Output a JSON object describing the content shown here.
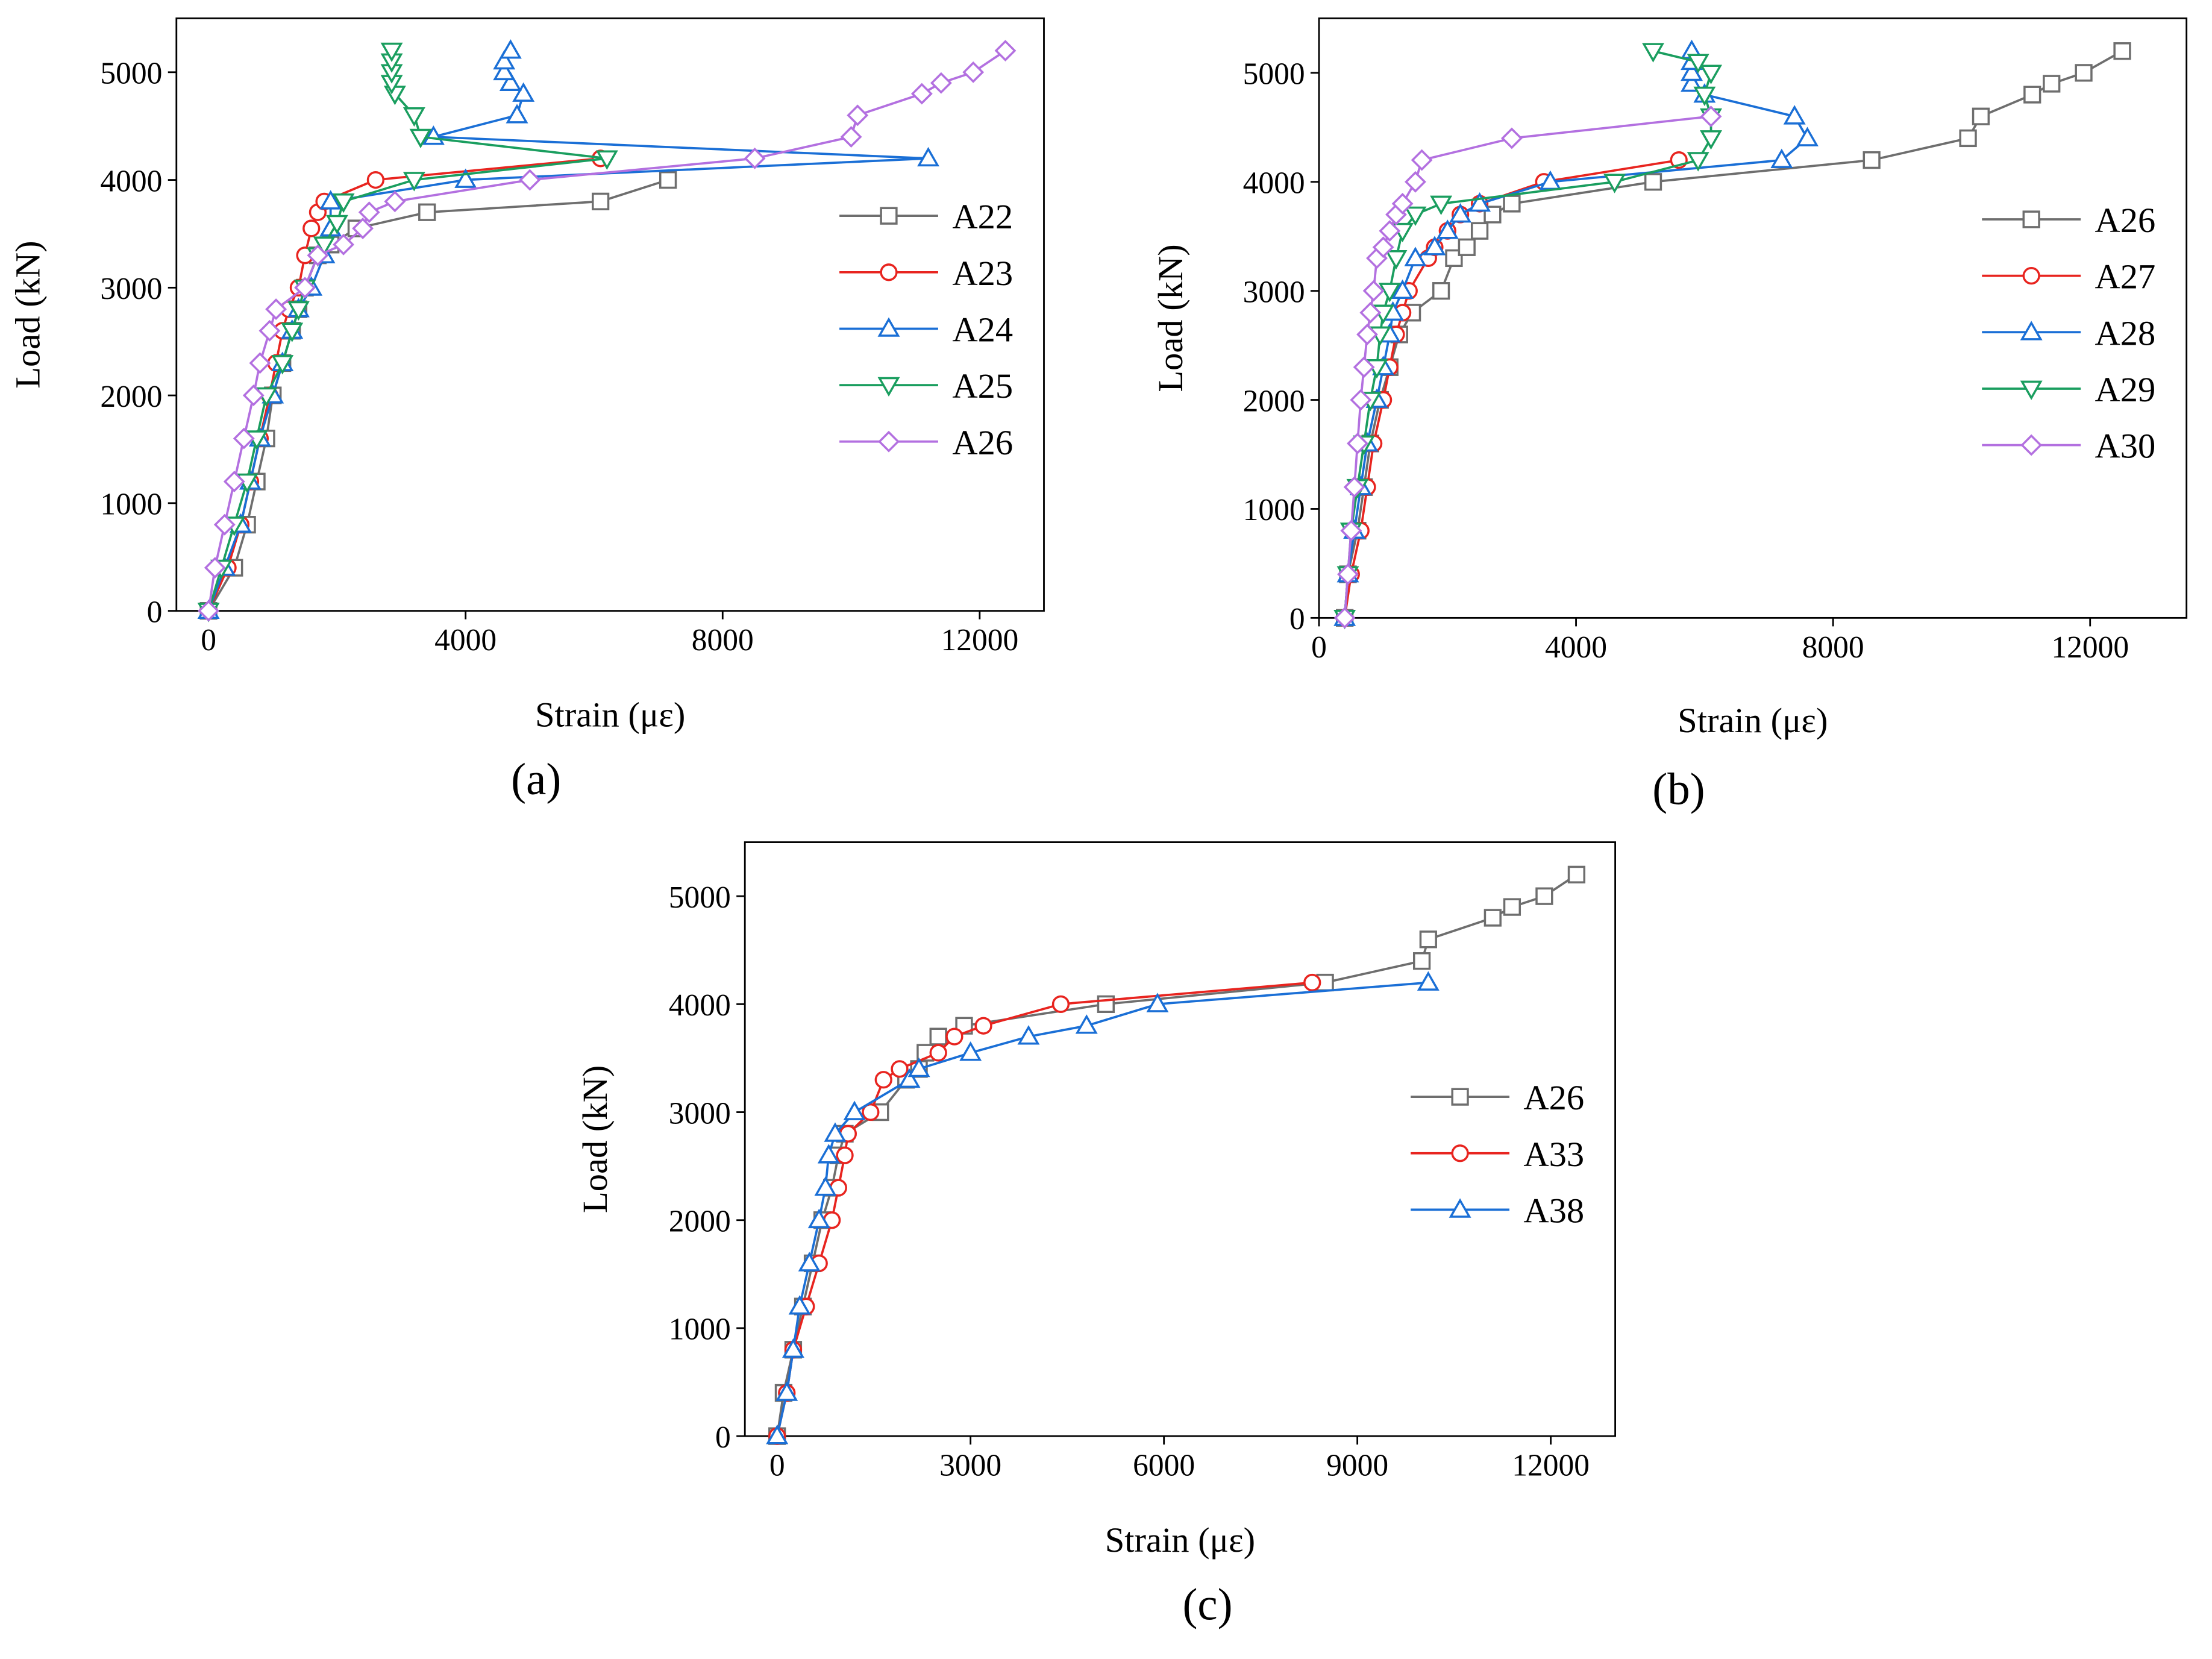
{
  "chart_data": [
    {
      "type": "line",
      "panel_label": "(a)",
      "x_label": "Strain (με)",
      "y_label": "Load (kN)",
      "xlim": [
        -500,
        13000
      ],
      "xticks": [
        0,
        4000,
        8000,
        12000
      ],
      "ylim": [
        0,
        5500
      ],
      "yticks": [
        0,
        1000,
        2000,
        3000,
        4000,
        5000
      ],
      "legend": "right",
      "series": [
        {
          "name": "A22",
          "color": "#6e6e6e",
          "marker": "square",
          "x": [
            0,
            400,
            600,
            750,
            900,
            1000,
            1150,
            1300,
            1400,
            1500,
            1700,
            1900,
            2300,
            3400,
            6100,
            7150
          ],
          "values": [
            0,
            400,
            800,
            1200,
            1600,
            2000,
            2300,
            2600,
            2800,
            3000,
            3300,
            3400,
            3550,
            3700,
            3800,
            4000
          ]
        },
        {
          "name": "A23",
          "color": "#e8241f",
          "marker": "circle",
          "x": [
            0,
            300,
            500,
            650,
            800,
            950,
            1050,
            1150,
            1250,
            1400,
            1500,
            1600,
            1700,
            1800,
            2600,
            6100
          ],
          "values": [
            0,
            400,
            800,
            1200,
            1600,
            2000,
            2300,
            2600,
            2800,
            3000,
            3300,
            3550,
            3700,
            3800,
            4000,
            4200
          ]
        },
        {
          "name": "A24",
          "color": "#1a6fd6",
          "marker": "triangle-up",
          "x": [
            0,
            250,
            500,
            650,
            800,
            1000,
            1150,
            1300,
            1400,
            1600,
            1800,
            1900,
            1900,
            4000,
            11200,
            3500,
            4800,
            4900,
            4700,
            4600,
            4600,
            4700
          ],
          "values": [
            0,
            400,
            800,
            1200,
            1600,
            2000,
            2300,
            2600,
            2800,
            3000,
            3300,
            3550,
            3800,
            4000,
            4200,
            4400,
            4600,
            4800,
            4900,
            5000,
            5100,
            5200
          ]
        },
        {
          "name": "A25",
          "color": "#1a9e5f",
          "marker": "triangle-down",
          "x": [
            0,
            200,
            400,
            600,
            750,
            900,
            1150,
            1300,
            1400,
            1500,
            1700,
            1800,
            2000,
            2100,
            3200,
            6200,
            3300,
            3200,
            2900,
            2850,
            2850,
            2850,
            2850
          ],
          "values": [
            0,
            400,
            800,
            1200,
            1600,
            2000,
            2300,
            2600,
            2800,
            3000,
            3300,
            3400,
            3600,
            3800,
            4000,
            4200,
            4400,
            4600,
            4800,
            4900,
            5000,
            5100,
            5200
          ]
        },
        {
          "name": "A26",
          "color": "#b370e0",
          "marker": "diamond",
          "x": [
            0,
            100,
            250,
            400,
            550,
            700,
            800,
            950,
            1050,
            1500,
            1700,
            2100,
            2400,
            2500,
            2900,
            5000,
            8500,
            10000,
            10100,
            11100,
            11400,
            11900,
            12400
          ],
          "values": [
            0,
            400,
            800,
            1200,
            1600,
            2000,
            2300,
            2600,
            2800,
            3000,
            3300,
            3400,
            3550,
            3700,
            3800,
            4000,
            4200,
            4400,
            4600,
            4800,
            4900,
            5000,
            5200
          ]
        }
      ]
    },
    {
      "type": "line",
      "panel_label": "(b)",
      "x_label": "Strain (με)",
      "y_label": "Load (kN)",
      "xlim": [
        0,
        13500
      ],
      "xticks": [
        0,
        4000,
        8000,
        12000
      ],
      "ylim": [
        0,
        5500
      ],
      "yticks": [
        0,
        1000,
        2000,
        3000,
        4000,
        5000
      ],
      "legend": "right",
      "series": [
        {
          "name": "A26",
          "color": "#6e6e6e",
          "marker": "square",
          "x": [
            400,
            450,
            600,
            700,
            800,
            950,
            1100,
            1250,
            1450,
            1900,
            2100,
            2300,
            2500,
            2700,
            3000,
            5200,
            8600,
            10100,
            10300,
            11100,
            11400,
            11900,
            12500
          ],
          "values": [
            0,
            400,
            800,
            1200,
            1600,
            2000,
            2300,
            2600,
            2800,
            3000,
            3300,
            3400,
            3550,
            3700,
            3800,
            4000,
            4200,
            4400,
            4600,
            4800,
            4900,
            5000,
            5200
          ]
        },
        {
          "name": "A27",
          "color": "#e8241f",
          "marker": "circle",
          "x": [
            400,
            500,
            650,
            750,
            850,
            1000,
            1100,
            1200,
            1300,
            1400,
            1700,
            1800,
            2000,
            2200,
            2500,
            3500,
            5600
          ],
          "values": [
            0,
            400,
            800,
            1200,
            1600,
            2000,
            2300,
            2600,
            2800,
            3000,
            3300,
            3400,
            3550,
            3700,
            3800,
            4000,
            4200
          ]
        },
        {
          "name": "A28",
          "color": "#1a6fd6",
          "marker": "triangle-up",
          "x": [
            400,
            450,
            550,
            650,
            750,
            900,
            1000,
            1100,
            1150,
            1300,
            1500,
            1800,
            2000,
            2200,
            2500,
            3600,
            7200,
            7600,
            7400,
            6000,
            5800,
            5800,
            5800,
            5800
          ],
          "values": [
            0,
            400,
            800,
            1200,
            1600,
            2000,
            2300,
            2600,
            2800,
            3000,
            3300,
            3400,
            3550,
            3700,
            3800,
            4000,
            4200,
            4400,
            4600,
            4800,
            4900,
            5000,
            5100,
            5200
          ]
        },
        {
          "name": "A29",
          "color": "#1a9e5f",
          "marker": "triangle-down",
          "x": [
            400,
            450,
            500,
            600,
            700,
            800,
            900,
            950,
            1000,
            1100,
            1200,
            1300,
            1500,
            1900,
            4600,
            5900,
            6100,
            6100,
            6000,
            6100,
            5900,
            5200
          ],
          "values": [
            0,
            400,
            800,
            1200,
            1600,
            2000,
            2300,
            2600,
            2800,
            3000,
            3300,
            3550,
            3700,
            3800,
            4000,
            4200,
            4400,
            4600,
            4800,
            5000,
            5100,
            5200
          ]
        },
        {
          "name": "A30",
          "color": "#b370e0",
          "marker": "diamond",
          "x": [
            400,
            450,
            500,
            550,
            600,
            650,
            700,
            750,
            800,
            850,
            900,
            1000,
            1100,
            1200,
            1300,
            1500,
            1600,
            3000,
            6100
          ],
          "values": [
            0,
            400,
            800,
            1200,
            1600,
            2000,
            2300,
            2600,
            2800,
            3000,
            3300,
            3400,
            3550,
            3700,
            3800,
            4000,
            4200,
            4400,
            4600
          ]
        }
      ]
    },
    {
      "type": "line",
      "panel_label": "(c)",
      "x_label": "Strain (με)",
      "y_label": "Load (kN)",
      "xlim": [
        -500,
        13000
      ],
      "xticks": [
        0,
        3000,
        6000,
        9000,
        12000
      ],
      "ylim": [
        0,
        5500
      ],
      "yticks": [
        0,
        1000,
        2000,
        3000,
        4000,
        5000
      ],
      "legend": "right",
      "series": [
        {
          "name": "A26",
          "color": "#6e6e6e",
          "marker": "square",
          "x": [
            0,
            100,
            250,
            400,
            550,
            700,
            850,
            950,
            1050,
            1600,
            2000,
            2200,
            2300,
            2500,
            2900,
            5100,
            8500,
            10000,
            10100,
            11100,
            11400,
            11900,
            12400
          ],
          "values": [
            0,
            400,
            800,
            1200,
            1600,
            2000,
            2300,
            2600,
            2800,
            3000,
            3300,
            3400,
            3550,
            3700,
            3800,
            4000,
            4200,
            4400,
            4600,
            4800,
            4900,
            5000,
            5200
          ]
        },
        {
          "name": "A33",
          "color": "#e8241f",
          "marker": "circle",
          "x": [
            0,
            150,
            250,
            450,
            650,
            850,
            950,
            1050,
            1100,
            1450,
            1650,
            1900,
            2500,
            2750,
            3200,
            4400,
            8300
          ],
          "values": [
            0,
            400,
            800,
            1200,
            1600,
            2000,
            2300,
            2600,
            2800,
            3000,
            3300,
            3400,
            3550,
            3700,
            3800,
            4000,
            4200
          ]
        },
        {
          "name": "A38",
          "color": "#1a6fd6",
          "marker": "triangle-up",
          "x": [
            0,
            150,
            250,
            350,
            500,
            650,
            750,
            800,
            900,
            1200,
            2050,
            2200,
            3000,
            3900,
            4800,
            5900,
            10100
          ],
          "values": [
            0,
            400,
            800,
            1200,
            1600,
            2000,
            2300,
            2600,
            2800,
            3000,
            3300,
            3400,
            3550,
            3700,
            3800,
            4000,
            4200
          ]
        }
      ]
    }
  ]
}
